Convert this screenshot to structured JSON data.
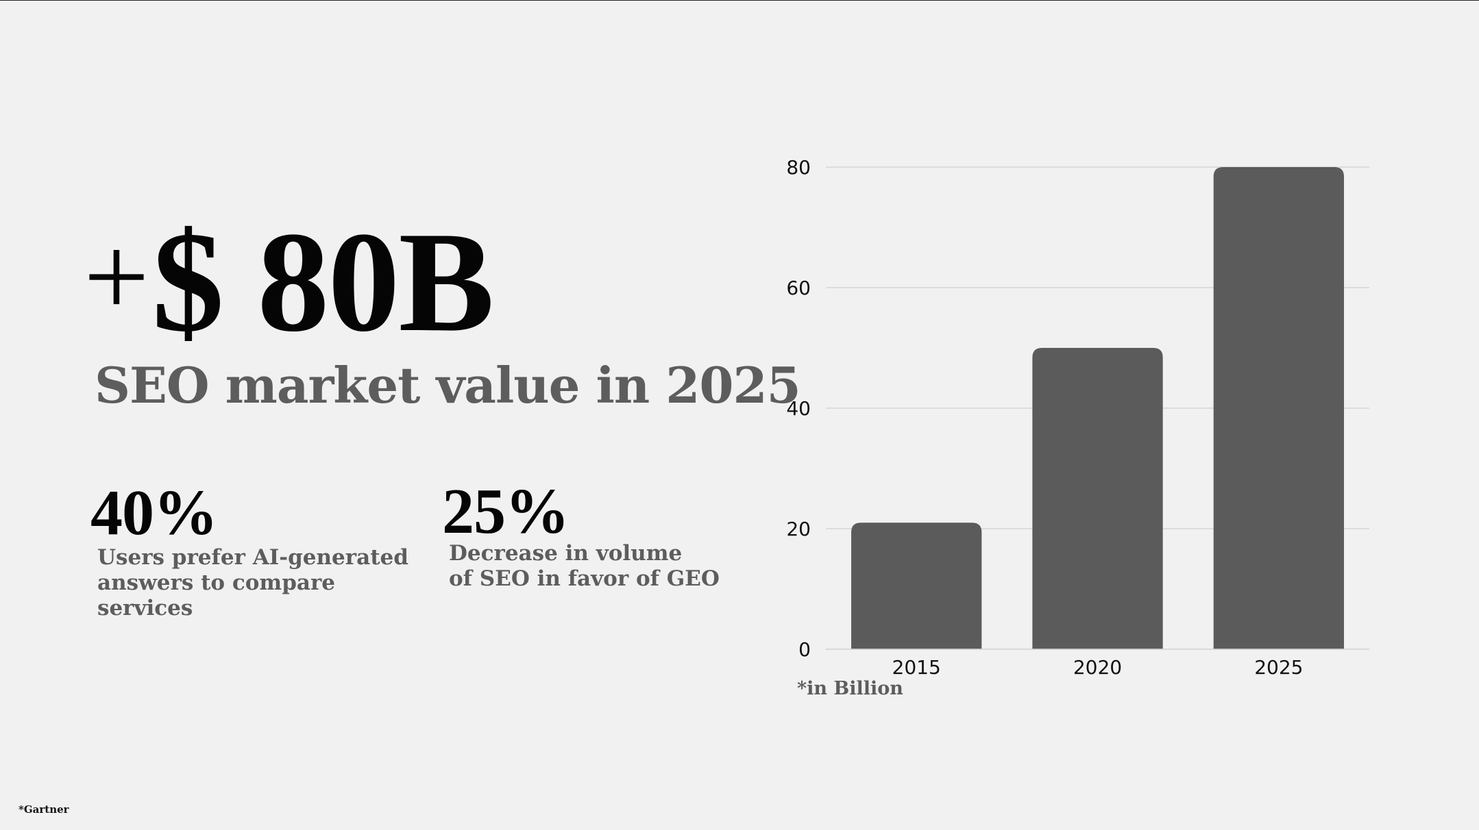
{
  "headline": {
    "plus": "+",
    "amount": "$ 80B"
  },
  "subtitle": "SEO market value in 2025",
  "stats": [
    {
      "value": "40%",
      "description": "Users prefer AI-generated\nanswers to compare\nservices"
    },
    {
      "value": "25%",
      "description": "Decrease in volume\nof SEO in favor of GEO"
    }
  ],
  "footnote": "*in Billion",
  "source": "*Gartner",
  "colors": {
    "background": "#f1f1f1",
    "bar": "#5b5b5b",
    "gridline": "#d6d6d6",
    "headline": "#050505",
    "subtitle": "#5d5d5d"
  },
  "chart_data": {
    "type": "bar",
    "categories": [
      "2015",
      "2020",
      "2025"
    ],
    "values": [
      21,
      50,
      80
    ],
    "ylim": [
      0,
      80
    ],
    "yticks": [
      0,
      20,
      40,
      60,
      80
    ],
    "grid": true,
    "title": "",
    "xlabel": "",
    "ylabel": ""
  }
}
